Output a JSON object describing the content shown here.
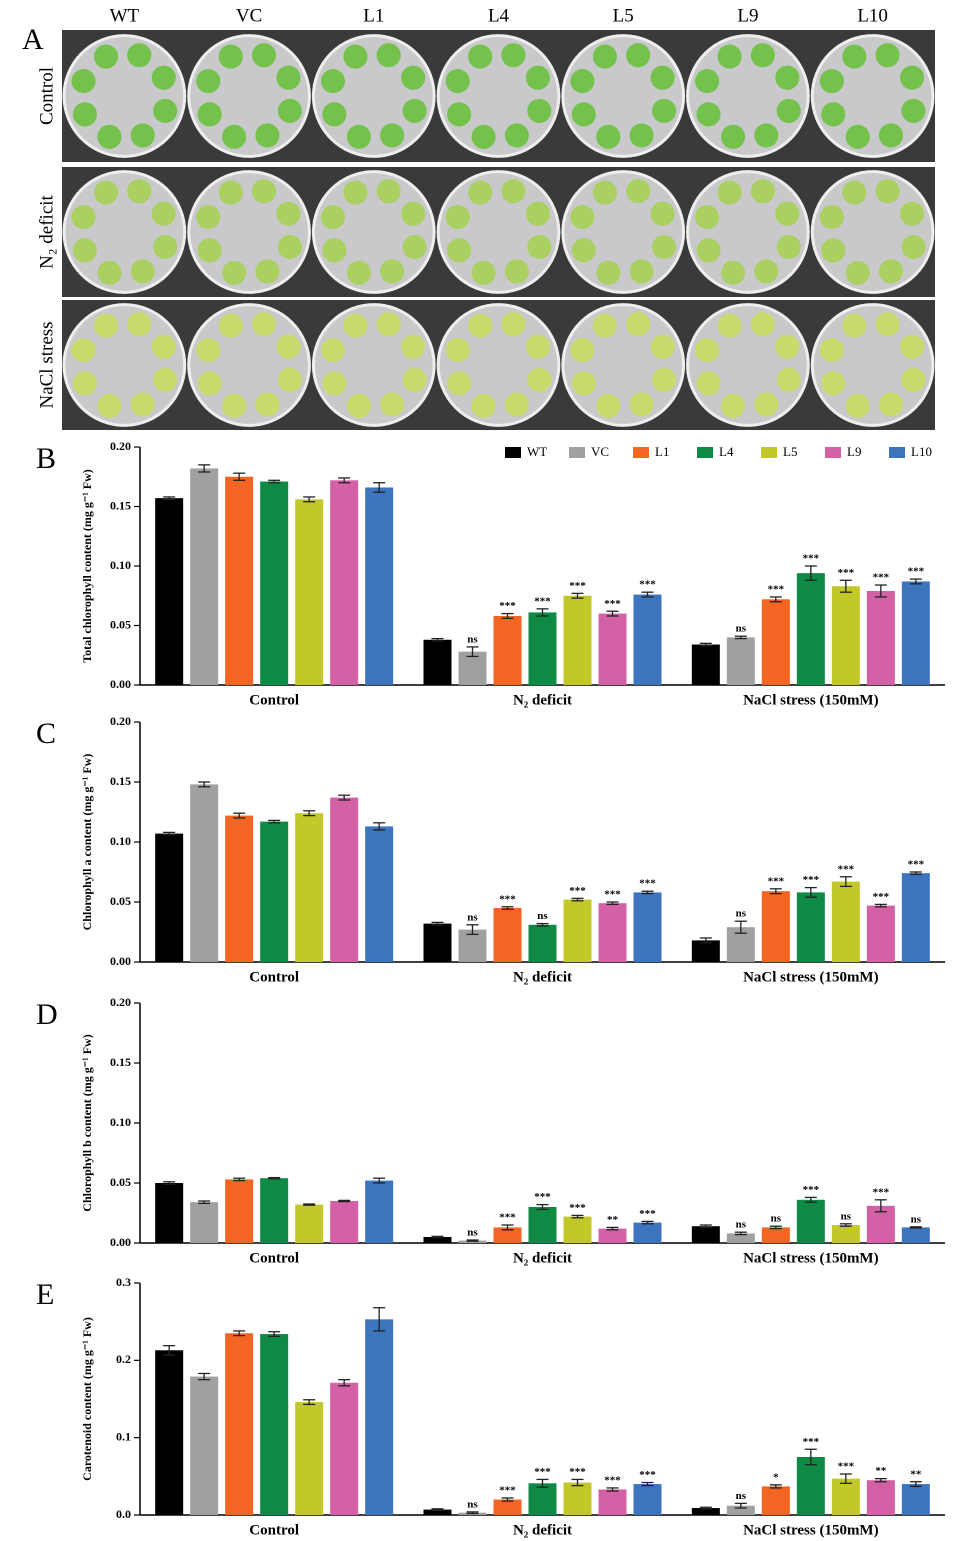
{
  "panel_a": {
    "label": "A",
    "columns": [
      "WT",
      "VC",
      "L1",
      "L4",
      "L5",
      "L9",
      "L10"
    ],
    "rows": [
      "Control",
      "N₂ deficit",
      "NaCl stress"
    ]
  },
  "chart_data": [
    {
      "type": "bar",
      "panel_label": "B",
      "y_label": "Total chlorophyll content (mg g⁻¹ Fw)",
      "categories": [
        "Control",
        "N₂ deficit",
        "NaCl stress (150mM)"
      ],
      "ylim": [
        0,
        0.2
      ],
      "yticks": [
        {
          "value": 0,
          "label": "0.00"
        },
        {
          "value": 0.05,
          "label": "0.05"
        },
        {
          "value": 0.1,
          "label": "0.10"
        },
        {
          "value": 0.15,
          "label": "0.15"
        },
        {
          "value": 0.2,
          "label": "0.20"
        }
      ],
      "legend": true,
      "legend_position": "top-right",
      "series": [
        {
          "name": "WT",
          "color": "#000000",
          "values": [
            0.157,
            0.038,
            0.034
          ],
          "errors": [
            0.001,
            0.001,
            0.001
          ],
          "annotations": [
            null,
            null,
            null
          ]
        },
        {
          "name": "VC",
          "color": "#a0a0a0",
          "values": [
            0.182,
            0.028,
            0.04
          ],
          "errors": [
            0.003,
            0.004,
            0.001
          ],
          "annotations": [
            null,
            "ns",
            "ns"
          ]
        },
        {
          "name": "L1",
          "color": "#f26522",
          "values": [
            0.175,
            0.058,
            0.072
          ],
          "errors": [
            0.003,
            0.002,
            0.002
          ],
          "annotations": [
            null,
            "***",
            "***"
          ]
        },
        {
          "name": "L4",
          "color": "#0f8a45",
          "values": [
            0.171,
            0.061,
            0.094
          ],
          "errors": [
            0.001,
            0.003,
            0.006
          ],
          "annotations": [
            null,
            "***",
            "***"
          ]
        },
        {
          "name": "L5",
          "color": "#c3c82a",
          "values": [
            0.156,
            0.075,
            0.083
          ],
          "errors": [
            0.002,
            0.002,
            0.005
          ],
          "annotations": [
            null,
            "***",
            "***"
          ]
        },
        {
          "name": "L9",
          "color": "#d460a6",
          "values": [
            0.172,
            0.06,
            0.079
          ],
          "errors": [
            0.002,
            0.002,
            0.005
          ],
          "annotations": [
            null,
            "***",
            "***"
          ]
        },
        {
          "name": "L10",
          "color": "#3c74bd",
          "values": [
            0.166,
            0.076,
            0.087
          ],
          "errors": [
            0.004,
            0.002,
            0.002
          ],
          "annotations": [
            null,
            "***",
            "***"
          ]
        }
      ]
    },
    {
      "type": "bar",
      "panel_label": "C",
      "y_label": "Chlorophyll a content (mg g⁻¹ Fw)",
      "categories": [
        "Control",
        "N₂ deficit",
        "NaCl stress (150mM)"
      ],
      "ylim": [
        0,
        0.2
      ],
      "yticks": [
        {
          "value": 0,
          "label": "0.00"
        },
        {
          "value": 0.05,
          "label": "0.05"
        },
        {
          "value": 0.1,
          "label": "0.10"
        },
        {
          "value": 0.15,
          "label": "0.15"
        },
        {
          "value": 0.2,
          "label": "0.20"
        }
      ],
      "legend": false,
      "series": [
        {
          "color": "#000000",
          "values": [
            0.107,
            0.032,
            0.018
          ],
          "errors": [
            0.001,
            0.001,
            0.002
          ],
          "annotations": [
            null,
            null,
            null
          ]
        },
        {
          "color": "#a0a0a0",
          "values": [
            0.148,
            0.027,
            0.029
          ],
          "errors": [
            0.002,
            0.004,
            0.005
          ],
          "annotations": [
            null,
            "ns",
            "ns"
          ]
        },
        {
          "color": "#f26522",
          "values": [
            0.122,
            0.045,
            0.059
          ],
          "errors": [
            0.002,
            0.001,
            0.002
          ],
          "annotations": [
            null,
            "***",
            "***"
          ]
        },
        {
          "color": "#0f8a45",
          "values": [
            0.117,
            0.031,
            0.058
          ],
          "errors": [
            0.001,
            0.001,
            0.004
          ],
          "annotations": [
            null,
            "ns",
            "***"
          ]
        },
        {
          "color": "#c3c82a",
          "values": [
            0.124,
            0.052,
            0.067
          ],
          "errors": [
            0.002,
            0.001,
            0.004
          ],
          "annotations": [
            null,
            "***",
            "***"
          ]
        },
        {
          "color": "#d460a6",
          "values": [
            0.137,
            0.049,
            0.047
          ],
          "errors": [
            0.002,
            0.001,
            0.001
          ],
          "annotations": [
            null,
            "***",
            "***"
          ]
        },
        {
          "color": "#3c74bd",
          "values": [
            0.113,
            0.058,
            0.074
          ],
          "errors": [
            0.003,
            0.001,
            0.001
          ],
          "annotations": [
            null,
            "***",
            "***"
          ]
        }
      ]
    },
    {
      "type": "bar",
      "panel_label": "D",
      "y_label": "Chlorophyll b content (mg g⁻¹ Fw)",
      "categories": [
        "Control",
        "N₂ deficit",
        "NaCl stress (150mM)"
      ],
      "ylim": [
        0,
        0.2
      ],
      "yticks": [
        {
          "value": 0,
          "label": "0.00"
        },
        {
          "value": 0.05,
          "label": "0.05"
        },
        {
          "value": 0.1,
          "label": "0.10"
        },
        {
          "value": 0.15,
          "label": "0.15"
        },
        {
          "value": 0.2,
          "label": "0.20"
        }
      ],
      "legend": false,
      "series": [
        {
          "color": "#000000",
          "values": [
            0.05,
            0.005,
            0.014
          ],
          "errors": [
            0.001,
            0.0005,
            0.001
          ],
          "annotations": [
            null,
            null,
            null
          ]
        },
        {
          "color": "#a0a0a0",
          "values": [
            0.034,
            0.002,
            0.008
          ],
          "errors": [
            0.001,
            0.0005,
            0.001
          ],
          "annotations": [
            null,
            "ns",
            "ns"
          ]
        },
        {
          "color": "#f26522",
          "values": [
            0.053,
            0.013,
            0.013
          ],
          "errors": [
            0.001,
            0.002,
            0.001
          ],
          "annotations": [
            null,
            "***",
            "ns"
          ]
        },
        {
          "color": "#0f8a45",
          "values": [
            0.054,
            0.03,
            0.036
          ],
          "errors": [
            0.0005,
            0.002,
            0.002
          ],
          "annotations": [
            null,
            "***",
            "***"
          ]
        },
        {
          "color": "#c3c82a",
          "values": [
            0.032,
            0.022,
            0.015
          ],
          "errors": [
            0.0005,
            0.001,
            0.001
          ],
          "annotations": [
            null,
            "***",
            "ns"
          ]
        },
        {
          "color": "#d460a6",
          "values": [
            0.035,
            0.012,
            0.031
          ],
          "errors": [
            0.0005,
            0.001,
            0.005
          ],
          "annotations": [
            null,
            "**",
            "***"
          ]
        },
        {
          "color": "#3c74bd",
          "values": [
            0.052,
            0.017,
            0.013
          ],
          "errors": [
            0.002,
            0.001,
            0.0005
          ],
          "annotations": [
            null,
            "***",
            "ns"
          ]
        }
      ]
    },
    {
      "type": "bar",
      "panel_label": "E",
      "y_label": "Carotenoid content (mg g⁻¹ Fw)",
      "categories": [
        "Control",
        "N₂ deficit",
        "NaCl stress (150mM)"
      ],
      "ylim": [
        0,
        0.3
      ],
      "yticks": [
        {
          "value": 0,
          "label": "0.0"
        },
        {
          "value": 0.1,
          "label": "0.1"
        },
        {
          "value": 0.2,
          "label": "0.2"
        },
        {
          "value": 0.3,
          "label": "0.3"
        }
      ],
      "legend": false,
      "series": [
        {
          "color": "#000000",
          "values": [
            0.213,
            0.007,
            0.009
          ],
          "errors": [
            0.006,
            0.001,
            0.001
          ],
          "annotations": [
            null,
            null,
            null
          ]
        },
        {
          "color": "#a0a0a0",
          "values": [
            0.179,
            0.003,
            0.012
          ],
          "errors": [
            0.004,
            0.001,
            0.003
          ],
          "annotations": [
            null,
            "ns",
            "ns"
          ]
        },
        {
          "color": "#f26522",
          "values": [
            0.235,
            0.02,
            0.037
          ],
          "errors": [
            0.003,
            0.002,
            0.002
          ],
          "annotations": [
            null,
            "***",
            "*"
          ]
        },
        {
          "color": "#0f8a45",
          "values": [
            0.234,
            0.041,
            0.075
          ],
          "errors": [
            0.003,
            0.005,
            0.01
          ],
          "annotations": [
            null,
            "***",
            "***"
          ]
        },
        {
          "color": "#c3c82a",
          "values": [
            0.146,
            0.042,
            0.047
          ],
          "errors": [
            0.003,
            0.004,
            0.006
          ],
          "annotations": [
            null,
            "***",
            "***"
          ]
        },
        {
          "color": "#d460a6",
          "values": [
            0.171,
            0.033,
            0.045
          ],
          "errors": [
            0.004,
            0.002,
            0.002
          ],
          "annotations": [
            null,
            "***",
            "**"
          ]
        },
        {
          "color": "#3c74bd",
          "values": [
            0.253,
            0.04,
            0.04
          ],
          "errors": [
            0.015,
            0.002,
            0.003
          ],
          "annotations": [
            null,
            "***",
            "**"
          ]
        }
      ]
    }
  ]
}
